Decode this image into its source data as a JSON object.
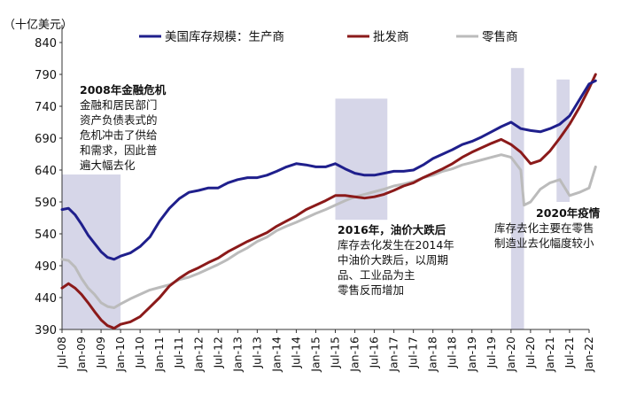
{
  "chart_data": {
    "type": "line",
    "unit_label": "（十亿美元）",
    "title": "",
    "xlabel": "",
    "ylabel": "",
    "ylim": [
      390,
      840
    ],
    "yticks": [
      390,
      440,
      490,
      540,
      590,
      640,
      690,
      740,
      790,
      840
    ],
    "x_start": "2008-07",
    "x_end": "2022-01",
    "x_tick_labels": [
      "Jul-08",
      "Jan-09",
      "Jul-09",
      "Jan-10",
      "Jul-10",
      "Jan-11",
      "Jul-11",
      "Jan-12",
      "Jul-12",
      "Jan-13",
      "Jul-13",
      "Jan-14",
      "Jul-14",
      "Jan-15",
      "Jul-15",
      "Jan-16",
      "Jul-16",
      "Jan-17",
      "Jul-17",
      "Jan-18",
      "Jul-18",
      "Jan-19",
      "Jul-19",
      "Jan-20",
      "Jul-20",
      "Jan-21",
      "Jul-21",
      "Jan-22"
    ],
    "grid": false,
    "legend_position": "top",
    "series": [
      {
        "name": "美国库存规模：生产商",
        "color": "#1f1f8c",
        "points": [
          [
            "2008-07",
            578
          ],
          [
            "2008-09",
            580
          ],
          [
            "2008-11",
            570
          ],
          [
            "2009-01",
            555
          ],
          [
            "2009-03",
            538
          ],
          [
            "2009-05",
            525
          ],
          [
            "2009-07",
            512
          ],
          [
            "2009-09",
            503
          ],
          [
            "2009-11",
            500
          ],
          [
            "2010-01",
            505
          ],
          [
            "2010-04",
            510
          ],
          [
            "2010-07",
            520
          ],
          [
            "2010-10",
            535
          ],
          [
            "2011-01",
            560
          ],
          [
            "2011-04",
            580
          ],
          [
            "2011-07",
            595
          ],
          [
            "2011-10",
            605
          ],
          [
            "2012-01",
            608
          ],
          [
            "2012-04",
            612
          ],
          [
            "2012-07",
            612
          ],
          [
            "2012-10",
            620
          ],
          [
            "2013-01",
            625
          ],
          [
            "2013-04",
            628
          ],
          [
            "2013-07",
            628
          ],
          [
            "2013-10",
            632
          ],
          [
            "2014-01",
            638
          ],
          [
            "2014-04",
            645
          ],
          [
            "2014-07",
            650
          ],
          [
            "2014-10",
            648
          ],
          [
            "2015-01",
            645
          ],
          [
            "2015-04",
            645
          ],
          [
            "2015-07",
            650
          ],
          [
            "2015-10",
            642
          ],
          [
            "2016-01",
            635
          ],
          [
            "2016-04",
            632
          ],
          [
            "2016-07",
            632
          ],
          [
            "2016-10",
            635
          ],
          [
            "2017-01",
            638
          ],
          [
            "2017-04",
            638
          ],
          [
            "2017-07",
            640
          ],
          [
            "2017-10",
            648
          ],
          [
            "2018-01",
            658
          ],
          [
            "2018-04",
            665
          ],
          [
            "2018-07",
            672
          ],
          [
            "2018-10",
            680
          ],
          [
            "2019-01",
            685
          ],
          [
            "2019-04",
            692
          ],
          [
            "2019-07",
            700
          ],
          [
            "2019-10",
            708
          ],
          [
            "2020-01",
            715
          ],
          [
            "2020-04",
            705
          ],
          [
            "2020-07",
            702
          ],
          [
            "2020-10",
            700
          ],
          [
            "2021-01",
            705
          ],
          [
            "2021-04",
            712
          ],
          [
            "2021-07",
            725
          ],
          [
            "2021-10",
            750
          ],
          [
            "2022-01",
            775
          ],
          [
            "2022-03",
            780
          ]
        ]
      },
      {
        "name": "批发商",
        "color": "#8b1a1a",
        "points": [
          [
            "2008-07",
            455
          ],
          [
            "2008-09",
            462
          ],
          [
            "2008-11",
            455
          ],
          [
            "2009-01",
            445
          ],
          [
            "2009-03",
            432
          ],
          [
            "2009-05",
            418
          ],
          [
            "2009-07",
            405
          ],
          [
            "2009-09",
            396
          ],
          [
            "2009-11",
            392
          ],
          [
            "2010-01",
            398
          ],
          [
            "2010-04",
            402
          ],
          [
            "2010-07",
            410
          ],
          [
            "2010-10",
            425
          ],
          [
            "2011-01",
            440
          ],
          [
            "2011-04",
            458
          ],
          [
            "2011-07",
            470
          ],
          [
            "2011-10",
            480
          ],
          [
            "2012-01",
            487
          ],
          [
            "2012-04",
            495
          ],
          [
            "2012-07",
            502
          ],
          [
            "2012-10",
            512
          ],
          [
            "2013-01",
            520
          ],
          [
            "2013-04",
            528
          ],
          [
            "2013-07",
            535
          ],
          [
            "2013-10",
            542
          ],
          [
            "2014-01",
            552
          ],
          [
            "2014-04",
            560
          ],
          [
            "2014-07",
            568
          ],
          [
            "2014-10",
            578
          ],
          [
            "2015-01",
            585
          ],
          [
            "2015-04",
            592
          ],
          [
            "2015-07",
            600
          ],
          [
            "2015-10",
            600
          ],
          [
            "2016-01",
            598
          ],
          [
            "2016-04",
            596
          ],
          [
            "2016-07",
            598
          ],
          [
            "2016-10",
            602
          ],
          [
            "2017-01",
            608
          ],
          [
            "2017-04",
            615
          ],
          [
            "2017-07",
            620
          ],
          [
            "2017-10",
            628
          ],
          [
            "2018-01",
            635
          ],
          [
            "2018-04",
            642
          ],
          [
            "2018-07",
            650
          ],
          [
            "2018-10",
            660
          ],
          [
            "2019-01",
            668
          ],
          [
            "2019-04",
            675
          ],
          [
            "2019-07",
            682
          ],
          [
            "2019-10",
            688
          ],
          [
            "2020-01",
            680
          ],
          [
            "2020-04",
            668
          ],
          [
            "2020-07",
            650
          ],
          [
            "2020-10",
            655
          ],
          [
            "2021-01",
            670
          ],
          [
            "2021-04",
            690
          ],
          [
            "2021-07",
            712
          ],
          [
            "2021-10",
            738
          ],
          [
            "2022-01",
            768
          ],
          [
            "2022-03",
            790
          ]
        ]
      },
      {
        "name": "零售商",
        "color": "#bbbbbb",
        "points": [
          [
            "2008-07",
            500
          ],
          [
            "2008-09",
            498
          ],
          [
            "2008-11",
            488
          ],
          [
            "2009-01",
            470
          ],
          [
            "2009-03",
            455
          ],
          [
            "2009-05",
            445
          ],
          [
            "2009-07",
            432
          ],
          [
            "2009-09",
            426
          ],
          [
            "2009-11",
            424
          ],
          [
            "2010-01",
            430
          ],
          [
            "2010-04",
            438
          ],
          [
            "2010-07",
            445
          ],
          [
            "2010-10",
            452
          ],
          [
            "2011-01",
            456
          ],
          [
            "2011-04",
            460
          ],
          [
            "2011-07",
            468
          ],
          [
            "2011-10",
            472
          ],
          [
            "2012-01",
            478
          ],
          [
            "2012-04",
            485
          ],
          [
            "2012-07",
            492
          ],
          [
            "2012-10",
            500
          ],
          [
            "2013-01",
            510
          ],
          [
            "2013-04",
            518
          ],
          [
            "2013-07",
            528
          ],
          [
            "2013-10",
            535
          ],
          [
            "2014-01",
            545
          ],
          [
            "2014-04",
            552
          ],
          [
            "2014-07",
            558
          ],
          [
            "2014-10",
            565
          ],
          [
            "2015-01",
            572
          ],
          [
            "2015-04",
            578
          ],
          [
            "2015-07",
            585
          ],
          [
            "2015-10",
            592
          ],
          [
            "2016-01",
            598
          ],
          [
            "2016-04",
            602
          ],
          [
            "2016-07",
            606
          ],
          [
            "2016-10",
            610
          ],
          [
            "2017-01",
            615
          ],
          [
            "2017-04",
            618
          ],
          [
            "2017-07",
            622
          ],
          [
            "2017-10",
            628
          ],
          [
            "2018-01",
            632
          ],
          [
            "2018-04",
            638
          ],
          [
            "2018-07",
            642
          ],
          [
            "2018-10",
            648
          ],
          [
            "2019-01",
            652
          ],
          [
            "2019-04",
            656
          ],
          [
            "2019-07",
            660
          ],
          [
            "2019-10",
            664
          ],
          [
            "2020-01",
            660
          ],
          [
            "2020-04",
            640
          ],
          [
            "2020-05",
            585
          ],
          [
            "2020-07",
            590
          ],
          [
            "2020-10",
            610
          ],
          [
            "2021-01",
            620
          ],
          [
            "2021-04",
            625
          ],
          [
            "2021-07",
            600
          ],
          [
            "2021-10",
            605
          ],
          [
            "2022-01",
            612
          ],
          [
            "2022-03",
            645
          ]
        ]
      }
    ],
    "shaded_periods": [
      {
        "start": "2008-07",
        "end": "2010-01"
      },
      {
        "start": "2015-07",
        "end": "2016-11"
      },
      {
        "start": "2020-01",
        "end": "2020-05"
      },
      {
        "start": "2021-03",
        "end": "2021-07"
      }
    ],
    "annotations": [
      {
        "title": "2008年金融危机",
        "lines": [
          "金融和居民部门",
          "资产负债表式的",
          "危机冲击了供给",
          "和需求，因此普",
          "遍大幅去化"
        ]
      },
      {
        "title": "2016年，油价大跌后",
        "lines": [
          "库存去化发生在2014年",
          "中油价大跌后，以周期",
          "品、工业品为主",
          "零售反而增加"
        ]
      },
      {
        "title": "2020年疫情",
        "lines": [
          "库存去化主要在零售",
          "制造业去化幅度较小"
        ]
      }
    ],
    "annotation_title_color": "#e00000",
    "shade_color": "#d6d6e8"
  }
}
